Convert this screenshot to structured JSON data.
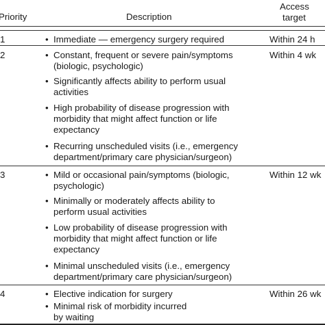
{
  "table": {
    "headers": {
      "priority": "Priority",
      "description": "Description",
      "access_line1": "Access",
      "access_line2": "target"
    },
    "rows": [
      {
        "priority": "1",
        "access": "Within 24 h",
        "items": [
          [
            "Immediate — emergency surgery required"
          ]
        ]
      },
      {
        "priority": "2",
        "access": "Within 4 wk",
        "items": [
          [
            "Constant, frequent or severe pain/symptoms",
            "(biologic, psychologic)"
          ],
          [
            "Significantly affects ability to perform usual",
            "activities"
          ],
          [
            "High probability of disease progression with",
            "morbidity that might affect function or life",
            "expectancy"
          ],
          [
            "Recurring unscheduled visits (i.e., emergency",
            "department/primary care physician/surgeon)"
          ]
        ]
      },
      {
        "priority": "3",
        "access": "Within 12 wk",
        "items": [
          [
            "Mild or occasional pain/symptoms (biologic,",
            "psychologic)"
          ],
          [
            "Minimally or moderately affects ability to",
            "perform usual activities"
          ],
          [
            "Low probability of disease progression with",
            "morbidity that might affect function or life",
            "expectancy"
          ],
          [
            "Minimal unscheduled visits (i.e., emergency",
            "department/primary care physician/surgeon)"
          ]
        ]
      },
      {
        "priority": "4",
        "access": "Within 26 wk",
        "items": [
          [
            "Elective indication for surgery"
          ],
          [
            "Minimal risk of morbidity incurred",
            "by waiting"
          ]
        ]
      }
    ]
  }
}
